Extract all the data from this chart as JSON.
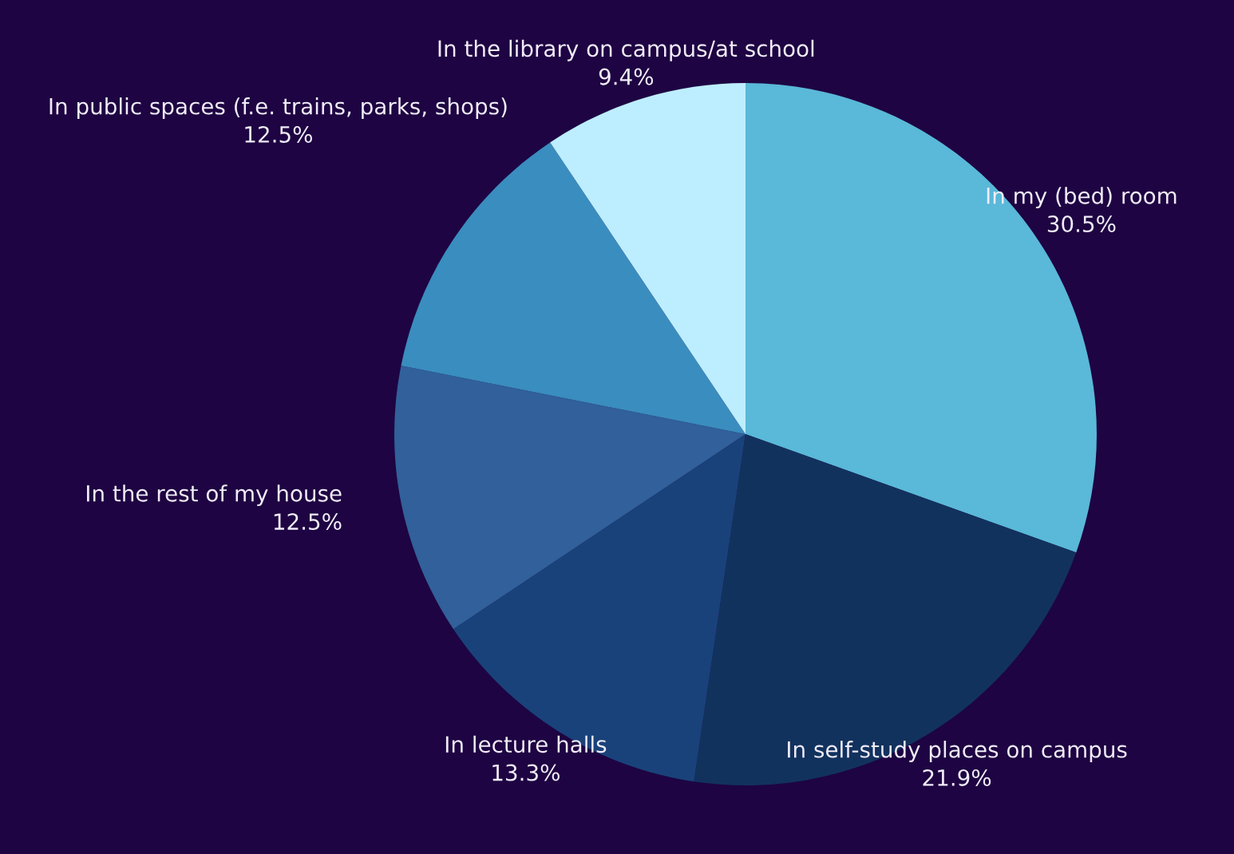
{
  "chart_data": {
    "type": "pie",
    "categories": [
      "In my (bed) room",
      "In self-study places on campus",
      "In lecture halls",
      "In the rest of my house",
      "In public spaces (f.e. trains, parks, shops)",
      "In the library on campus/at school"
    ],
    "values": [
      30.5,
      21.9,
      13.3,
      12.5,
      12.5,
      9.4
    ],
    "value_labels": [
      "30.5%",
      "21.9%",
      "13.3%",
      "12.5%",
      "12.5%",
      "9.4%"
    ],
    "colors": [
      "#5ab8d8",
      "#12325e",
      "#1a427a",
      "#31609a",
      "#3a8dbf",
      "#bdeeff"
    ],
    "legend": false
  }
}
